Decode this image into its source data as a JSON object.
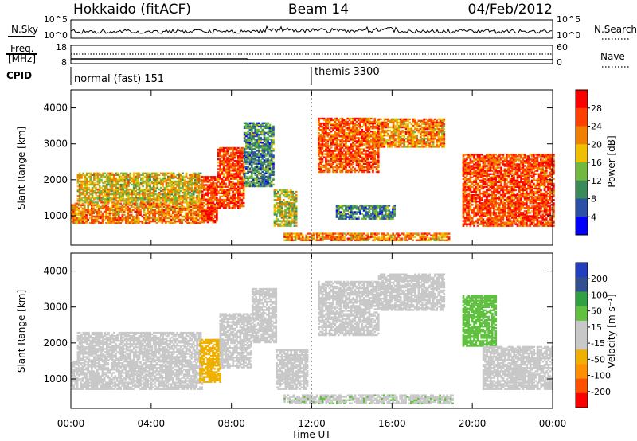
{
  "header": {
    "station": "Hokkaido (fitACF)",
    "beam": "Beam 14",
    "date": "04/Feb/2012"
  },
  "status_panels": {
    "nsky": {
      "left_label": "N.Sky",
      "right_label": "N.Search",
      "left_ticks": [
        "10^5",
        "10^0"
      ],
      "right_ticks": [
        "10^5",
        "10^0"
      ]
    },
    "freq": {
      "left_label_top": "Freq.",
      "left_label_unit": "[MHz]",
      "right_label": "Nave",
      "left_ticks": [
        "18",
        "8"
      ],
      "right_ticks": [
        "60",
        "0"
      ]
    },
    "cpid": {
      "label": "CPID",
      "segments": [
        {
          "start_hour": 0,
          "label": "normal (fast) 151"
        },
        {
          "start_hour": 12,
          "label": "themis 3300"
        }
      ]
    }
  },
  "colors": {
    "power_scale": [
      "#0000ff",
      "#2a50a8",
      "#3a8a5a",
      "#70b840",
      "#f0c000",
      "#f08000",
      "#ff4000",
      "#ff0000"
    ],
    "velocity_scale": [
      "#ff0000",
      "#ff5000",
      "#ff9000",
      "#f0b000",
      "#c8c8c8",
      "#c8c8c8",
      "#60c040",
      "#30a040",
      "#305090",
      "#2040c0"
    ],
    "ground_scatter": "#c0c0c0"
  },
  "chart_data": [
    {
      "type": "heatmap",
      "name": "power",
      "ylabel": "Slant Range [km]",
      "ylim": [
        180,
        4500
      ],
      "y_ticks": [
        1000,
        2000,
        3000,
        4000
      ],
      "x_ticks": [
        "00:00",
        "04:00",
        "08:00",
        "12:00",
        "16:00",
        "20:00",
        "00:00"
      ],
      "xlim_hours": [
        0,
        24
      ],
      "colorbar": {
        "label": "Power [dB]",
        "ticks": [
          "28",
          "24",
          "20",
          "16",
          "12",
          "8",
          "4"
        ],
        "range": [
          0,
          32
        ]
      },
      "scatter_regions": [
        {
          "t0": 0.0,
          "t1": 6.5,
          "r0": 780,
          "r1": 1350,
          "v": 22
        },
        {
          "t0": 0.3,
          "t1": 6.5,
          "r0": 1350,
          "r1": 2200,
          "v": 18
        },
        {
          "t0": 6.5,
          "t1": 7.3,
          "r0": 800,
          "r1": 2100,
          "v": 27
        },
        {
          "t0": 7.3,
          "t1": 8.6,
          "r0": 1200,
          "r1": 2900,
          "v": 26
        },
        {
          "t0": 8.6,
          "t1": 10.1,
          "r0": 1800,
          "r1": 3600,
          "v": 10
        },
        {
          "t0": 10.1,
          "t1": 11.2,
          "r0": 700,
          "r1": 1700,
          "v": 16
        },
        {
          "t0": 10.6,
          "t1": 18.8,
          "r0": 300,
          "r1": 520,
          "v": 22
        },
        {
          "t0": 13.2,
          "t1": 16.1,
          "r0": 900,
          "r1": 1300,
          "v": 10
        },
        {
          "t0": 12.3,
          "t1": 15.3,
          "r0": 2200,
          "r1": 3700,
          "v": 25
        },
        {
          "t0": 15.3,
          "t1": 18.6,
          "r0": 2900,
          "r1": 3700,
          "v": 22
        },
        {
          "t0": 19.5,
          "t1": 24.0,
          "r0": 700,
          "r1": 2700,
          "v": 26
        }
      ]
    },
    {
      "type": "heatmap",
      "name": "velocity",
      "ylabel": "Slant Range [km]",
      "xlabel": "Time UT",
      "ylim": [
        180,
        4500
      ],
      "y_ticks": [
        1000,
        2000,
        3000,
        4000
      ],
      "x_ticks": [
        "00:00",
        "04:00",
        "08:00",
        "12:00",
        "16:00",
        "20:00",
        "00:00"
      ],
      "xlim_hours": [
        0,
        24
      ],
      "colorbar": {
        "label": "Velocity [m s⁻¹]",
        "ticks": [
          "200",
          "100",
          "50",
          "15",
          "-15",
          "-50",
          "-100",
          "-200"
        ],
        "range": [
          -250,
          250
        ]
      },
      "scatter_regions": [
        {
          "t0": 0.0,
          "t1": 6.5,
          "r0": 700,
          "r1": 1500,
          "v": 0
        },
        {
          "t0": 0.3,
          "t1": 6.5,
          "r0": 1500,
          "r1": 2300,
          "v": 0
        },
        {
          "t0": 6.4,
          "t1": 7.4,
          "r0": 900,
          "r1": 2100,
          "v": -70
        },
        {
          "t0": 7.4,
          "t1": 9.0,
          "r0": 1300,
          "r1": 2800,
          "v": 0
        },
        {
          "t0": 9.0,
          "t1": 10.2,
          "r0": 2000,
          "r1": 3500,
          "v": 0
        },
        {
          "t0": 10.2,
          "t1": 11.8,
          "r0": 700,
          "r1": 1800,
          "v": 0
        },
        {
          "t0": 10.6,
          "t1": 19.0,
          "r0": 300,
          "r1": 560,
          "v": 40
        },
        {
          "t0": 12.3,
          "t1": 15.3,
          "r0": 2200,
          "r1": 3700,
          "v": 0
        },
        {
          "t0": 15.3,
          "t1": 18.6,
          "r0": 2900,
          "r1": 3900,
          "v": 0
        },
        {
          "t0": 19.5,
          "t1": 21.2,
          "r0": 1900,
          "r1": 3300,
          "v": 70
        },
        {
          "t0": 20.5,
          "t1": 24.0,
          "r0": 700,
          "r1": 1900,
          "v": 0
        }
      ]
    }
  ]
}
